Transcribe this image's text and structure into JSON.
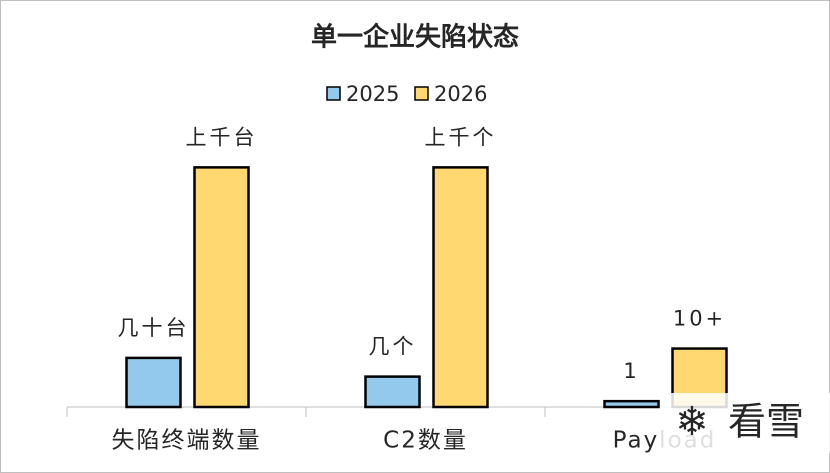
{
  "chart_data": {
    "type": "bar",
    "title": "单一企业失陷状态",
    "categories": [
      "失陷终端数量",
      "C2数量",
      "Payload"
    ],
    "series": [
      {
        "name": "2025",
        "color": "#93c9ec",
        "values": [
          8.4,
          5.2,
          1
        ],
        "value_labels": [
          "几十台",
          "几个",
          "1"
        ]
      },
      {
        "name": "2026",
        "color": "#ffd872",
        "values": [
          41,
          41,
          10
        ],
        "value_labels": [
          "上千台",
          "上千个",
          "10+"
        ]
      }
    ],
    "ylim": [
      0,
      45
    ],
    "legend": "top",
    "watermark": "看雪"
  }
}
